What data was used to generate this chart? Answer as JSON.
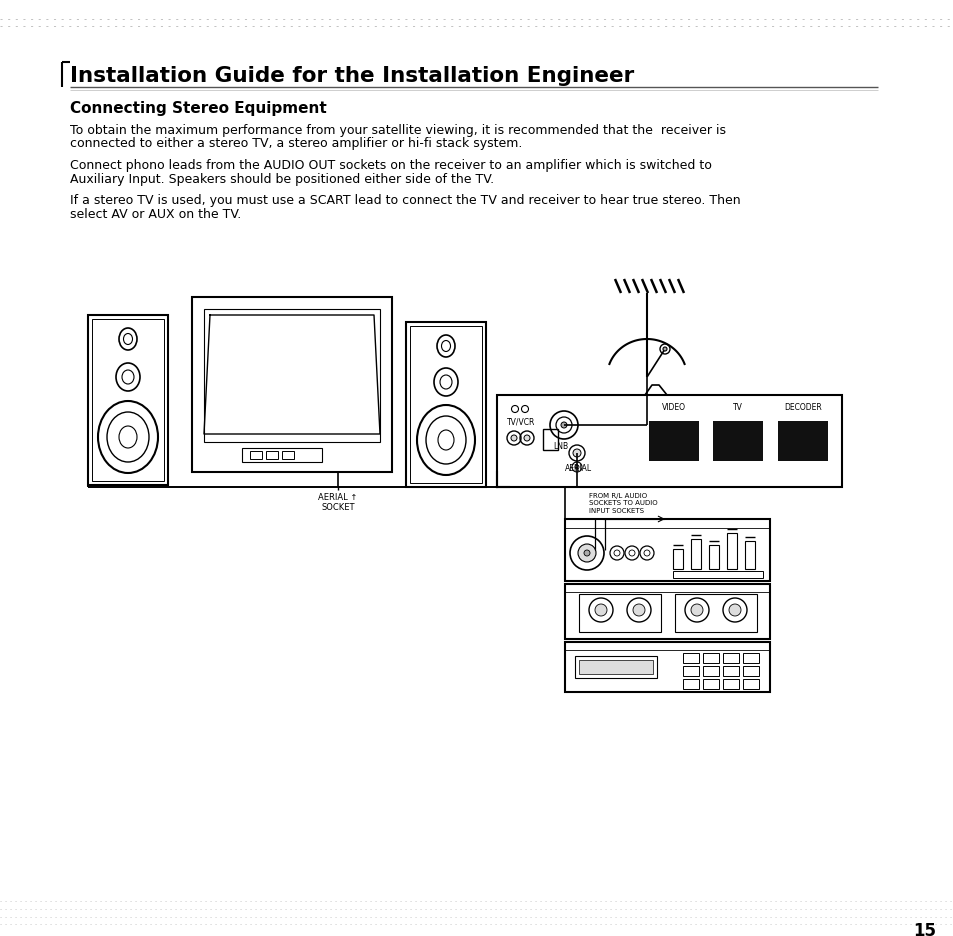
{
  "bg_color": "#ffffff",
  "text_color": "#000000",
  "title": "Installation Guide for the Installation Engineer",
  "subtitle": "Connecting Stereo Equipment",
  "para1_line1": "To obtain the maximum performance from your satellite viewing, it is recommended that the  receiver is",
  "para1_line2": "connected to either a stereo TV, a stereo amplifier or hi-fi stack system.",
  "para2_line1": "Connect phono leads from the AUDIO OUT sockets on the receiver to an amplifier which is switched to",
  "para2_line2": "Auxiliary Input. Speakers should be positioned either side of the TV.",
  "para3_line1": "If a stereo TV is used, you must use a SCART lead to connect the TV and receiver to hear true stereo. Then",
  "para3_line2": "select AV or AUX on the TV.",
  "label_aerial_socket": "AERIAL ↑\nSOCKET",
  "label_from_rl": "FROM R/L AUDIO\nSOCKETS TO AUDIO\nINPUT SOCKETS",
  "label_tvivcr": "TV/VCR",
  "label_lnb": "LNB",
  "label_aerial": "AERIAL",
  "label_video": "VIDEO",
  "label_tv": "TV",
  "label_decoder": "DECODER",
  "page_number": "15",
  "dark_fill": "#111111",
  "gray_fill": "#aaaaaa",
  "light_gray": "#dddddd"
}
